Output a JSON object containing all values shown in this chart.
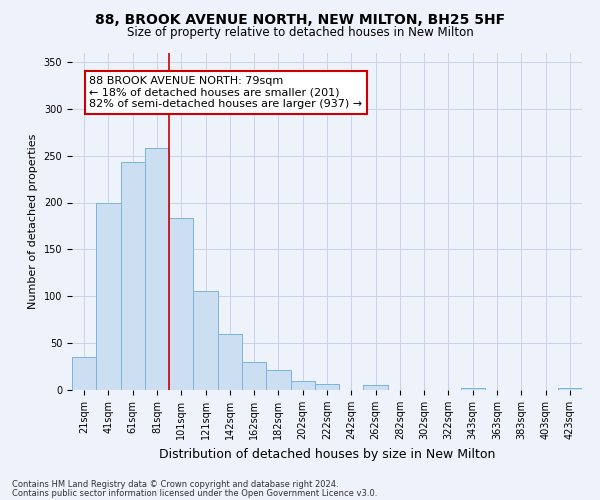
{
  "title": "88, BROOK AVENUE NORTH, NEW MILTON, BH25 5HF",
  "subtitle": "Size of property relative to detached houses in New Milton",
  "xlabel": "Distribution of detached houses by size in New Milton",
  "ylabel": "Number of detached properties",
  "bar_labels": [
    "21sqm",
    "41sqm",
    "61sqm",
    "81sqm",
    "101sqm",
    "121sqm",
    "142sqm",
    "162sqm",
    "182sqm",
    "202sqm",
    "222sqm",
    "242sqm",
    "262sqm",
    "282sqm",
    "302sqm",
    "322sqm",
    "343sqm",
    "363sqm",
    "383sqm",
    "403sqm",
    "423sqm"
  ],
  "bar_values": [
    35,
    199,
    243,
    258,
    183,
    106,
    60,
    30,
    21,
    10,
    6,
    0,
    5,
    0,
    0,
    0,
    2,
    0,
    0,
    0,
    2
  ],
  "bar_color": "#ccdff2",
  "bar_edge_color": "#7ab4d8",
  "vline_color": "#cc0000",
  "vline_xindex": 3,
  "annotation_text": "88 BROOK AVENUE NORTH: 79sqm\n← 18% of detached houses are smaller (201)\n82% of semi-detached houses are larger (937) →",
  "annotation_box_facecolor": "#ffffff",
  "annotation_box_edgecolor": "#cc0000",
  "ylim": [
    0,
    360
  ],
  "yticks": [
    0,
    50,
    100,
    150,
    200,
    250,
    300,
    350
  ],
  "grid_color": "#c8d4e8",
  "footer_line1": "Contains HM Land Registry data © Crown copyright and database right 2024.",
  "footer_line2": "Contains public sector information licensed under the Open Government Licence v3.0.",
  "background_color": "#eef2fa",
  "title_fontsize": 10,
  "subtitle_fontsize": 8.5,
  "ylabel_fontsize": 8,
  "xlabel_fontsize": 9,
  "tick_fontsize": 7,
  "annotation_fontsize": 8,
  "footer_fontsize": 6
}
